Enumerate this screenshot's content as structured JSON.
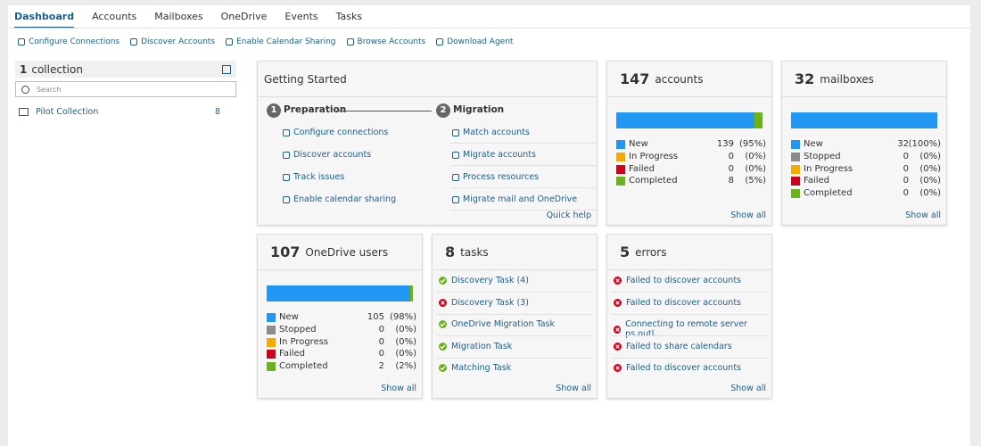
{
  "tabs": [
    "Dashboard",
    "Accounts",
    "Mailboxes",
    "OneDrive",
    "Events",
    "Tasks"
  ],
  "toolbar": [
    "Configure Connections",
    "Discover Accounts",
    "Enable Calendar Sharing",
    "Browse Accounts",
    "Download Agent"
  ],
  "sidebar": {
    "count": 1,
    "label": "collection",
    "search_placeholder": "Search",
    "items": [
      {
        "name": "Pilot Collection",
        "count": 8
      }
    ]
  },
  "getting_started": {
    "title": "Getting Started",
    "steps": [
      {
        "number": 1,
        "label": "Preparation",
        "links": [
          "Configure connections",
          "Discover accounts",
          "Track issues",
          "Enable calendar sharing"
        ]
      },
      {
        "number": 2,
        "label": "Migration",
        "links": [
          "Match accounts",
          "Migrate accounts",
          "Process resources",
          "Migrate mail and OneDrive"
        ]
      }
    ],
    "quick_help": "Quick help"
  },
  "stat_cards": [
    {
      "count": 147,
      "label": "accounts",
      "show_all": "Show all",
      "rows": [
        {
          "name": "New",
          "count": 139,
          "percent": "(95%)",
          "color": "#2196f3"
        },
        {
          "name": "In Progress",
          "count": 0,
          "percent": "(0%)",
          "color": "#f5a800"
        },
        {
          "name": "Failed",
          "count": 0,
          "percent": "(0%)",
          "color": "#d0021b"
        },
        {
          "name": "Completed",
          "count": 8,
          "percent": "(5%)",
          "color": "#6bb31c"
        }
      ]
    },
    {
      "count": 32,
      "label": "mailboxes",
      "show_all": "Show all",
      "rows": [
        {
          "name": "New",
          "count": 32,
          "percent": "(100%)",
          "color": "#2196f3"
        },
        {
          "name": "Stopped",
          "count": 0,
          "percent": "(0%)",
          "color": "#8c8c8c"
        },
        {
          "name": "In Progress",
          "count": 0,
          "percent": "(0%)",
          "color": "#f5a800"
        },
        {
          "name": "Failed",
          "count": 0,
          "percent": "(0%)",
          "color": "#d0021b"
        },
        {
          "name": "Completed",
          "count": 0,
          "percent": "(0%)",
          "color": "#6bb31c"
        }
      ]
    },
    {
      "count": 107,
      "label": "OneDrive users",
      "show_all": "Show all",
      "rows": [
        {
          "name": "New",
          "count": 105,
          "percent": "(98%)",
          "color": "#2196f3"
        },
        {
          "name": "Stopped",
          "count": 0,
          "percent": "(0%)",
          "color": "#8c8c8c"
        },
        {
          "name": "In Progress",
          "count": 0,
          "percent": "(0%)",
          "color": "#f5a800"
        },
        {
          "name": "Failed",
          "count": 0,
          "percent": "(0%)",
          "color": "#d0021b"
        },
        {
          "name": "Completed",
          "count": 2,
          "percent": "(2%)",
          "color": "#6bb31c"
        }
      ]
    }
  ],
  "list_cards": [
    {
      "count": 8,
      "label": "tasks",
      "show_all": "Show all",
      "items": [
        {
          "text": "Discovery Task (4)",
          "status": "success"
        },
        {
          "text": "Discovery Task (3)",
          "status": "error"
        },
        {
          "text": "OneDrive Migration Task",
          "status": "success"
        },
        {
          "text": "Migration Task",
          "status": "success"
        },
        {
          "text": "Matching Task",
          "status": "success"
        }
      ]
    },
    {
      "count": 5,
      "label": "errors",
      "show_all": "Show all",
      "items": [
        {
          "text": "Failed to discover accounts",
          "status": "error"
        },
        {
          "text": "Failed to discover accounts",
          "status": "error"
        },
        {
          "text": "Connecting to remote server ps.outl...",
          "status": "error"
        },
        {
          "text": "Failed to share calendars",
          "status": "error"
        },
        {
          "text": "Failed to discover accounts",
          "status": "error"
        }
      ]
    }
  ]
}
